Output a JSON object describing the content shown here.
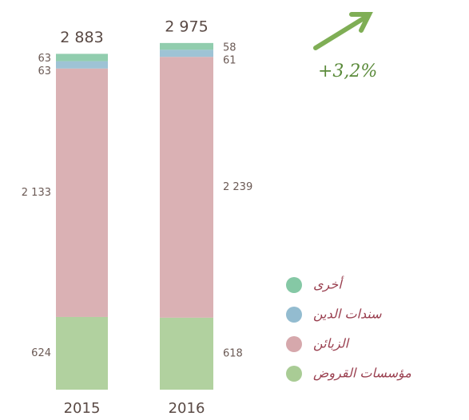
{
  "chart_data": {
    "type": "stacked-bar",
    "categories": [
      "2015",
      "2016"
    ],
    "series": [
      {
        "name": "مؤسسات القروض",
        "color": "#a9cc95",
        "values": [
          624,
          618
        ]
      },
      {
        "name": "الزبائن",
        "color": "#d6a8ac",
        "values": [
          2133,
          2239
        ],
        "value_labels": [
          "2 133",
          "2 239"
        ]
      },
      {
        "name": "سندات الدين",
        "color": "#93bcd0",
        "values": [
          63,
          61
        ]
      },
      {
        "name": "أخرى",
        "color": "#85c8a5",
        "values": [
          63,
          58
        ]
      }
    ],
    "totals": [
      2883,
      2975
    ],
    "total_labels": [
      "2 883",
      "2 975"
    ],
    "annotation": "+3,2%"
  }
}
